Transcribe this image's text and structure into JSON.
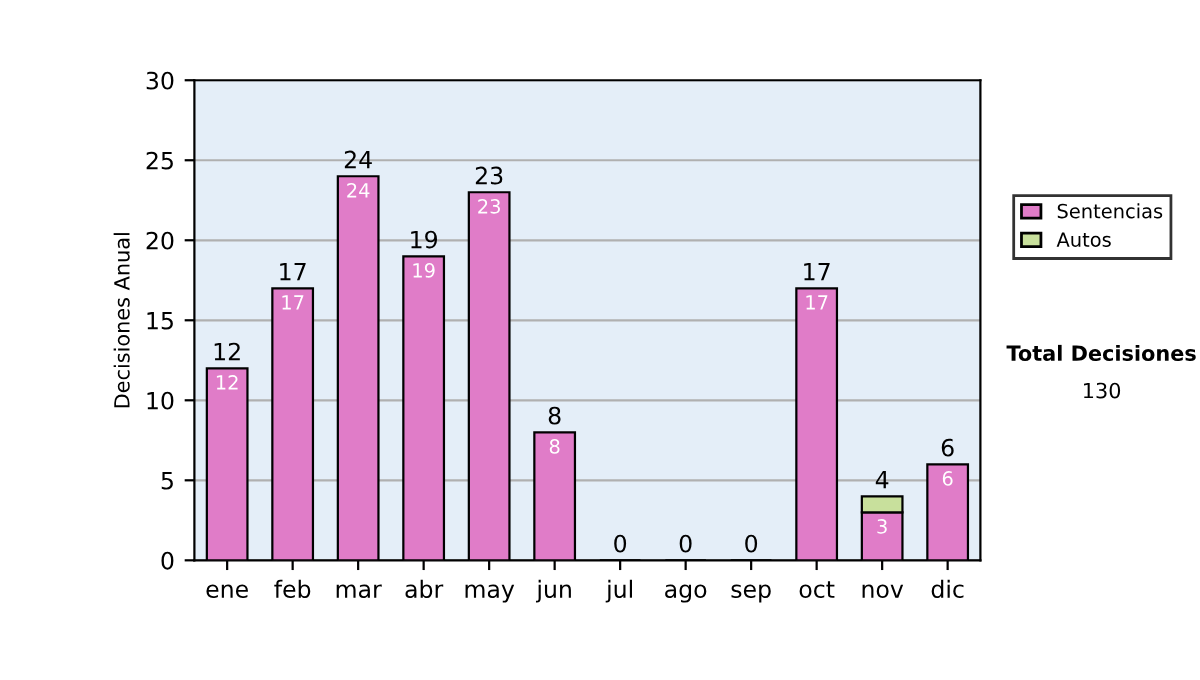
{
  "chart_data": {
    "type": "bar",
    "stacked": true,
    "ylabel": "Decisiones Anual",
    "categories": [
      "ene",
      "feb",
      "mar",
      "abr",
      "may",
      "jun",
      "jul",
      "ago",
      "sep",
      "oct",
      "nov",
      "dic"
    ],
    "series": [
      {
        "name": "Sentencias",
        "color": "#e07cc8",
        "values": [
          12,
          17,
          24,
          19,
          23,
          8,
          0,
          0,
          0,
          17,
          3,
          6
        ],
        "value_labels": [
          "12",
          "17",
          "24",
          "19",
          "23",
          "8",
          null,
          null,
          null,
          "17",
          "3",
          "6"
        ]
      },
      {
        "name": "Autos",
        "color": "#c8e09c",
        "values": [
          null,
          null,
          null,
          null,
          null,
          null,
          null,
          null,
          null,
          null,
          1,
          null
        ]
      }
    ],
    "totals": [
      "12",
      "17",
      "24",
      "19",
      "23",
      "8",
      "0",
      "0",
      "0",
      "17",
      "4",
      "6"
    ],
    "ylim": [
      0,
      30
    ],
    "yticks": [
      0,
      5,
      10,
      15,
      20,
      25,
      30
    ],
    "grid": "y",
    "legend": "right",
    "annotations": [
      "Total Decisiones",
      "130"
    ]
  }
}
